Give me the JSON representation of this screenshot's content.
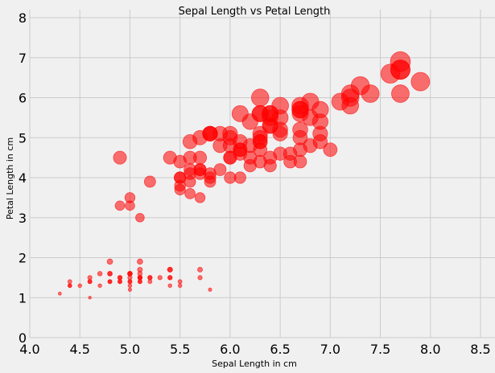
{
  "chart_data": {
    "type": "scatter",
    "title": "Sepal Length vs Petal Length",
    "xlabel": "Sepal Length in cm",
    "ylabel": "Petal Length in cm",
    "xlim": [
      4.0,
      8.5
    ],
    "ylim": [
      0,
      8
    ],
    "xticks": [
      "4.0",
      "4.5",
      "5.0",
      "5.5",
      "6.0",
      "6.5",
      "7.0",
      "7.5",
      "8.0",
      "8.5"
    ],
    "yticks": [
      "0",
      "1",
      "2",
      "3",
      "4",
      "5",
      "6",
      "7",
      "8"
    ],
    "grid": true,
    "marker_color": "#ff0000",
    "marker_alpha": 0.55,
    "marker_size_encodes": "petal length",
    "points": [
      [
        5.1,
        1.4
      ],
      [
        4.9,
        1.4
      ],
      [
        4.7,
        1.3
      ],
      [
        4.6,
        1.5
      ],
      [
        5.0,
        1.4
      ],
      [
        5.4,
        1.7
      ],
      [
        4.6,
        1.4
      ],
      [
        5.0,
        1.5
      ],
      [
        4.4,
        1.4
      ],
      [
        4.9,
        1.5
      ],
      [
        5.4,
        1.5
      ],
      [
        4.8,
        1.6
      ],
      [
        4.8,
        1.4
      ],
      [
        4.3,
        1.1
      ],
      [
        5.8,
        1.2
      ],
      [
        5.7,
        1.5
      ],
      [
        5.4,
        1.3
      ],
      [
        5.1,
        1.4
      ],
      [
        5.7,
        1.7
      ],
      [
        5.1,
        1.5
      ],
      [
        5.4,
        1.7
      ],
      [
        5.1,
        1.5
      ],
      [
        4.6,
        1.0
      ],
      [
        5.1,
        1.7
      ],
      [
        4.8,
        1.9
      ],
      [
        5.0,
        1.6
      ],
      [
        5.0,
        1.6
      ],
      [
        5.2,
        1.5
      ],
      [
        5.2,
        1.4
      ],
      [
        4.7,
        1.6
      ],
      [
        4.8,
        1.6
      ],
      [
        5.4,
        1.5
      ],
      [
        5.2,
        1.5
      ],
      [
        5.5,
        1.4
      ],
      [
        4.9,
        1.5
      ],
      [
        5.0,
        1.2
      ],
      [
        5.5,
        1.3
      ],
      [
        4.9,
        1.4
      ],
      [
        4.4,
        1.3
      ],
      [
        5.1,
        1.5
      ],
      [
        5.0,
        1.3
      ],
      [
        4.5,
        1.3
      ],
      [
        4.4,
        1.3
      ],
      [
        5.0,
        1.6
      ],
      [
        5.1,
        1.9
      ],
      [
        4.8,
        1.4
      ],
      [
        5.1,
        1.6
      ],
      [
        4.6,
        1.4
      ],
      [
        5.3,
        1.5
      ],
      [
        5.0,
        1.4
      ],
      [
        7.0,
        4.7
      ],
      [
        6.4,
        4.5
      ],
      [
        6.9,
        4.9
      ],
      [
        5.5,
        4.0
      ],
      [
        6.5,
        4.6
      ],
      [
        5.7,
        4.5
      ],
      [
        6.3,
        4.7
      ],
      [
        4.9,
        3.3
      ],
      [
        6.6,
        4.6
      ],
      [
        5.2,
        3.9
      ],
      [
        5.0,
        3.5
      ],
      [
        5.9,
        4.2
      ],
      [
        6.0,
        4.0
      ],
      [
        6.1,
        4.7
      ],
      [
        5.6,
        3.6
      ],
      [
        6.7,
        4.4
      ],
      [
        5.6,
        4.5
      ],
      [
        5.8,
        4.1
      ],
      [
        6.2,
        4.5
      ],
      [
        5.6,
        3.9
      ],
      [
        5.9,
        4.8
      ],
      [
        6.1,
        4.0
      ],
      [
        6.3,
        4.9
      ],
      [
        6.1,
        4.7
      ],
      [
        6.4,
        4.3
      ],
      [
        6.6,
        4.4
      ],
      [
        6.8,
        4.8
      ],
      [
        6.7,
        5.0
      ],
      [
        6.0,
        4.5
      ],
      [
        5.7,
        3.5
      ],
      [
        5.5,
        3.8
      ],
      [
        5.5,
        3.7
      ],
      [
        5.8,
        3.9
      ],
      [
        6.0,
        5.1
      ],
      [
        5.4,
        4.5
      ],
      [
        6.0,
        4.5
      ],
      [
        6.7,
        4.7
      ],
      [
        6.3,
        4.4
      ],
      [
        5.6,
        4.1
      ],
      [
        5.5,
        4.0
      ],
      [
        5.5,
        4.4
      ],
      [
        6.1,
        4.6
      ],
      [
        5.8,
        4.0
      ],
      [
        5.0,
        3.3
      ],
      [
        5.6,
        4.2
      ],
      [
        5.7,
        4.2
      ],
      [
        5.7,
        4.2
      ],
      [
        6.2,
        4.3
      ],
      [
        5.1,
        3.0
      ],
      [
        5.7,
        4.1
      ],
      [
        6.3,
        6.0
      ],
      [
        5.8,
        5.1
      ],
      [
        7.1,
        5.9
      ],
      [
        6.3,
        5.6
      ],
      [
        6.5,
        5.8
      ],
      [
        7.6,
        6.6
      ],
      [
        4.9,
        4.5
      ],
      [
        7.3,
        6.3
      ],
      [
        6.7,
        5.8
      ],
      [
        7.2,
        6.1
      ],
      [
        6.5,
        5.1
      ],
      [
        6.4,
        5.3
      ],
      [
        6.8,
        5.5
      ],
      [
        5.7,
        5.0
      ],
      [
        5.8,
        5.1
      ],
      [
        6.4,
        5.3
      ],
      [
        6.5,
        5.5
      ],
      [
        7.7,
        6.7
      ],
      [
        7.7,
        6.9
      ],
      [
        6.0,
        5.0
      ],
      [
        6.9,
        5.7
      ],
      [
        5.6,
        4.9
      ],
      [
        7.7,
        6.7
      ],
      [
        6.3,
        4.9
      ],
      [
        6.7,
        5.7
      ],
      [
        7.2,
        6.0
      ],
      [
        6.2,
        4.8
      ],
      [
        6.1,
        4.9
      ],
      [
        6.4,
        5.6
      ],
      [
        7.2,
        5.8
      ],
      [
        7.4,
        6.1
      ],
      [
        7.9,
        6.4
      ],
      [
        6.4,
        5.6
      ],
      [
        6.3,
        5.1
      ],
      [
        6.1,
        5.6
      ],
      [
        7.7,
        6.1
      ],
      [
        6.3,
        5.6
      ],
      [
        6.4,
        5.5
      ],
      [
        6.0,
        4.8
      ],
      [
        6.9,
        5.4
      ],
      [
        6.7,
        5.6
      ],
      [
        6.9,
        5.1
      ],
      [
        5.8,
        5.1
      ],
      [
        6.8,
        5.9
      ],
      [
        6.7,
        5.7
      ],
      [
        6.7,
        5.2
      ],
      [
        6.3,
        5.0
      ],
      [
        6.5,
        5.2
      ],
      [
        6.2,
        5.4
      ],
      [
        5.9,
        5.1
      ]
    ]
  }
}
